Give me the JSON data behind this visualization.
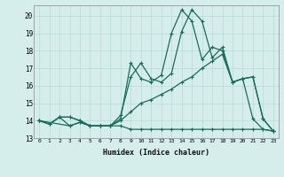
{
  "xlabel": "Humidex (Indice chaleur)",
  "background_color": "#d5eeeb",
  "grid_color": "#b8dad6",
  "line_color": "#1a6b5a",
  "xlim": [
    -0.5,
    23.5
  ],
  "ylim": [
    13.0,
    20.6
  ],
  "xticks": [
    0,
    1,
    2,
    3,
    4,
    5,
    6,
    7,
    8,
    9,
    10,
    11,
    12,
    13,
    14,
    15,
    16,
    17,
    18,
    19,
    20,
    21,
    22,
    23
  ],
  "yticks": [
    13,
    14,
    15,
    16,
    17,
    18,
    19,
    20
  ],
  "line1_x": [
    0,
    1,
    2,
    3,
    4,
    5,
    6,
    7,
    8,
    9,
    10,
    11,
    12,
    13,
    14,
    15,
    16,
    17,
    18,
    19,
    20,
    21,
    22,
    23
  ],
  "line1_y": [
    14.0,
    13.8,
    14.2,
    14.2,
    14.0,
    13.7,
    13.7,
    13.7,
    14.1,
    17.3,
    16.4,
    16.2,
    16.6,
    19.0,
    20.35,
    19.7,
    17.5,
    18.2,
    18.0,
    16.2,
    16.4,
    14.1,
    13.5,
    13.4
  ],
  "line2_x": [
    0,
    1,
    2,
    3,
    4,
    5,
    6,
    7,
    8,
    9,
    10,
    11,
    12,
    13,
    14,
    15,
    16,
    17,
    18,
    19,
    20,
    21,
    22,
    23
  ],
  "line2_y": [
    14.0,
    13.8,
    14.2,
    14.2,
    14.0,
    13.7,
    13.7,
    13.7,
    14.0,
    14.5,
    15.0,
    15.2,
    15.5,
    15.8,
    16.2,
    16.5,
    17.0,
    17.4,
    17.8,
    16.2,
    16.4,
    16.5,
    14.1,
    13.4
  ],
  "line3_x": [
    0,
    3,
    4,
    5,
    6,
    7,
    8,
    9,
    10,
    11,
    12,
    13,
    14,
    15,
    16,
    17,
    18,
    19,
    20,
    21,
    22,
    23
  ],
  "line3_y": [
    14.0,
    13.7,
    13.9,
    13.7,
    13.7,
    13.7,
    14.3,
    16.5,
    17.3,
    16.4,
    16.2,
    16.7,
    19.1,
    20.35,
    19.7,
    17.6,
    18.2,
    16.2,
    16.4,
    16.5,
    14.1,
    13.4
  ],
  "line4_x": [
    0,
    1,
    2,
    3,
    4,
    5,
    6,
    7,
    8,
    9,
    10,
    11,
    12,
    13,
    14,
    15,
    16,
    17,
    18,
    19,
    20,
    21,
    22,
    23
  ],
  "line4_y": [
    14.0,
    13.8,
    14.2,
    13.7,
    13.9,
    13.7,
    13.7,
    13.7,
    13.7,
    13.5,
    13.5,
    13.5,
    13.5,
    13.5,
    13.5,
    13.5,
    13.5,
    13.5,
    13.5,
    13.5,
    13.5,
    13.5,
    13.5,
    13.4
  ]
}
